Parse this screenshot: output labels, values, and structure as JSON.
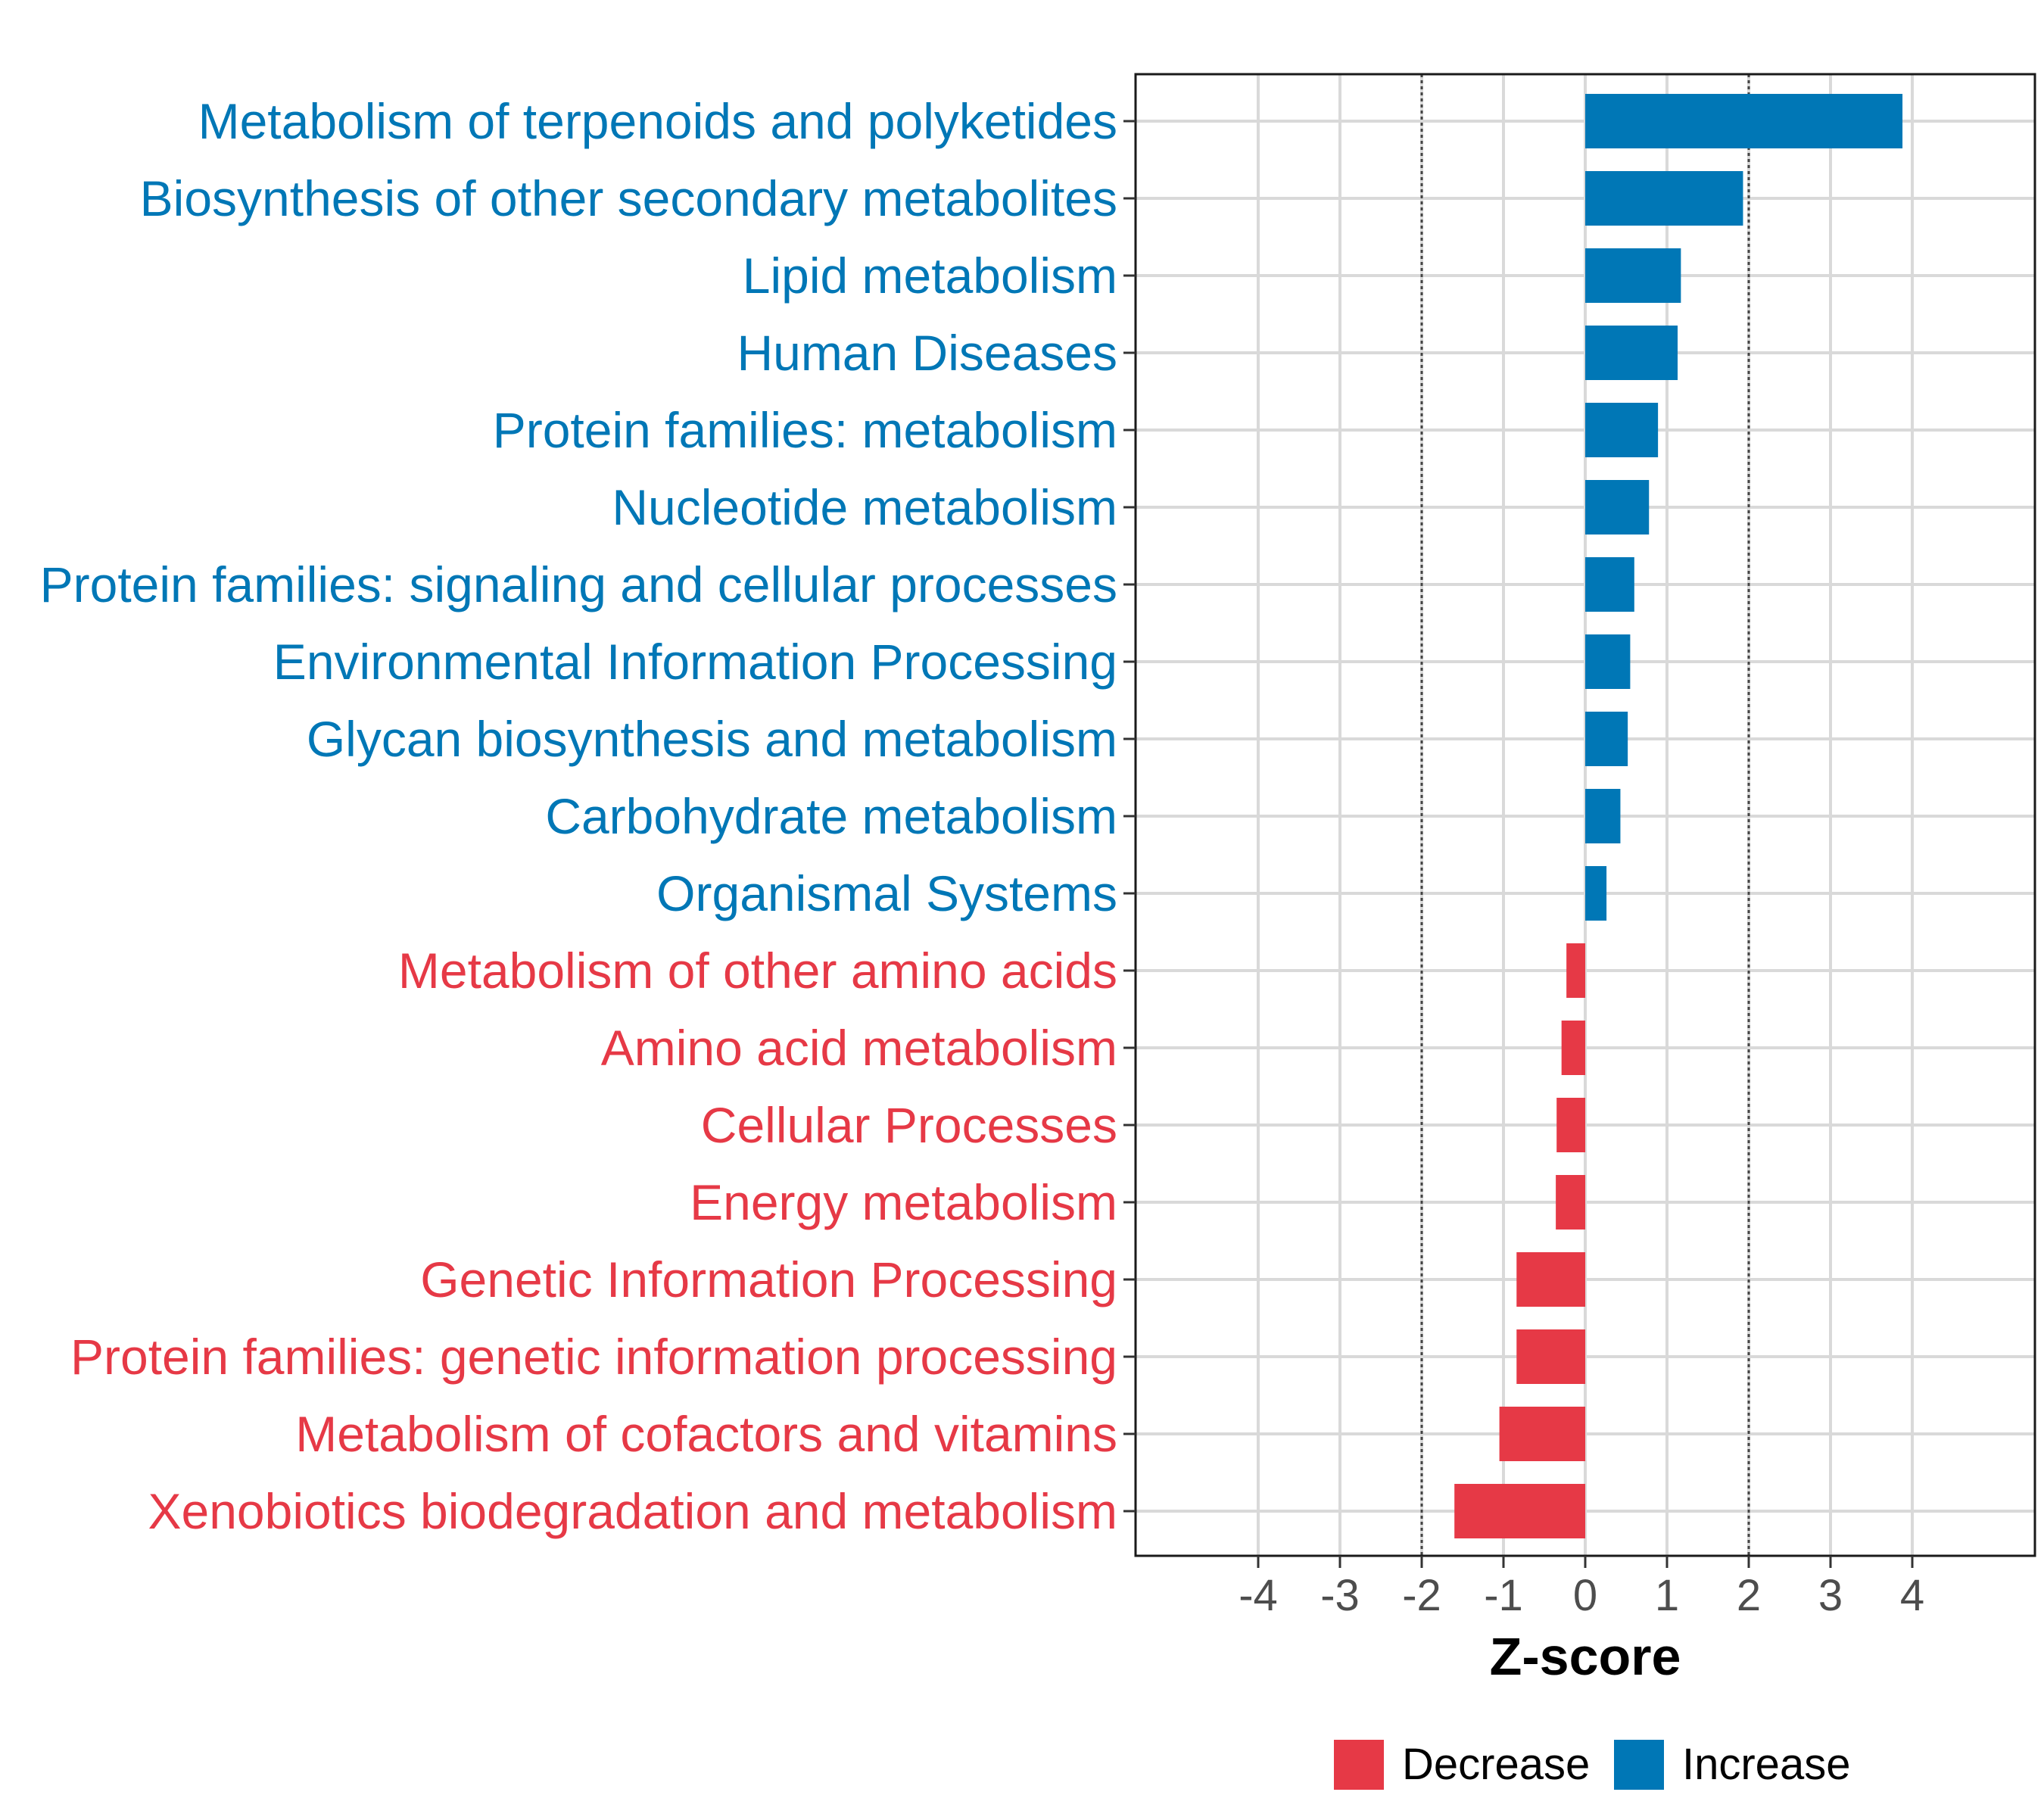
{
  "chart_data": {
    "type": "bar",
    "orientation": "horizontal",
    "xlabel": "Z-score",
    "xlim": [
      -5.5,
      5.5
    ],
    "x_ticks": [
      "-4",
      "-3",
      "-2",
      "-1",
      "0",
      "1",
      "2",
      "3",
      "4"
    ],
    "x_tick_values": [
      -4,
      -3,
      -2,
      -1,
      0,
      1,
      2,
      3,
      4
    ],
    "threshold_lines": [
      -2,
      2
    ],
    "colors": {
      "Increase": "#0077b6",
      "Decrease": "#e63946",
      "grid": "#d9d9d9",
      "axis": "#1a1a1a"
    },
    "legend": {
      "placement": "bottom",
      "entries": [
        {
          "label": "Decrease",
          "group": "Decrease"
        },
        {
          "label": "Increase",
          "group": "Increase"
        }
      ]
    },
    "bars": [
      {
        "category": "Metabolism of terpenoids and polyketides",
        "value": 3.88,
        "group": "Increase"
      },
      {
        "category": "Biosynthesis of other secondary metabolites",
        "value": 1.93,
        "group": "Increase"
      },
      {
        "category": "Lipid metabolism",
        "value": 1.17,
        "group": "Increase"
      },
      {
        "category": "Human Diseases",
        "value": 1.13,
        "group": "Increase"
      },
      {
        "category": "Protein families: metabolism",
        "value": 0.89,
        "group": "Increase"
      },
      {
        "category": "Nucleotide metabolism",
        "value": 0.78,
        "group": "Increase"
      },
      {
        "category": "Protein families: signaling and cellular processes",
        "value": 0.6,
        "group": "Increase"
      },
      {
        "category": "Environmental Information Processing",
        "value": 0.55,
        "group": "Increase"
      },
      {
        "category": "Glycan biosynthesis and metabolism",
        "value": 0.52,
        "group": "Increase"
      },
      {
        "category": "Carbohydrate metabolism",
        "value": 0.43,
        "group": "Increase"
      },
      {
        "category": "Organismal Systems",
        "value": 0.26,
        "group": "Increase"
      },
      {
        "category": "Metabolism of other amino acids",
        "value": -0.23,
        "group": "Decrease"
      },
      {
        "category": "Amino acid metabolism",
        "value": -0.29,
        "group": "Decrease"
      },
      {
        "category": "Cellular Processes",
        "value": -0.35,
        "group": "Decrease"
      },
      {
        "category": "Energy metabolism",
        "value": -0.36,
        "group": "Decrease"
      },
      {
        "category": "Genetic Information Processing",
        "value": -0.84,
        "group": "Decrease"
      },
      {
        "category": "Protein families: genetic information processing",
        "value": -0.84,
        "group": "Decrease"
      },
      {
        "category": "Metabolism of cofactors and vitamins",
        "value": -1.05,
        "group": "Decrease"
      },
      {
        "category": "Xenobiotics biodegradation and metabolism",
        "value": -1.6,
        "group": "Decrease"
      }
    ]
  }
}
